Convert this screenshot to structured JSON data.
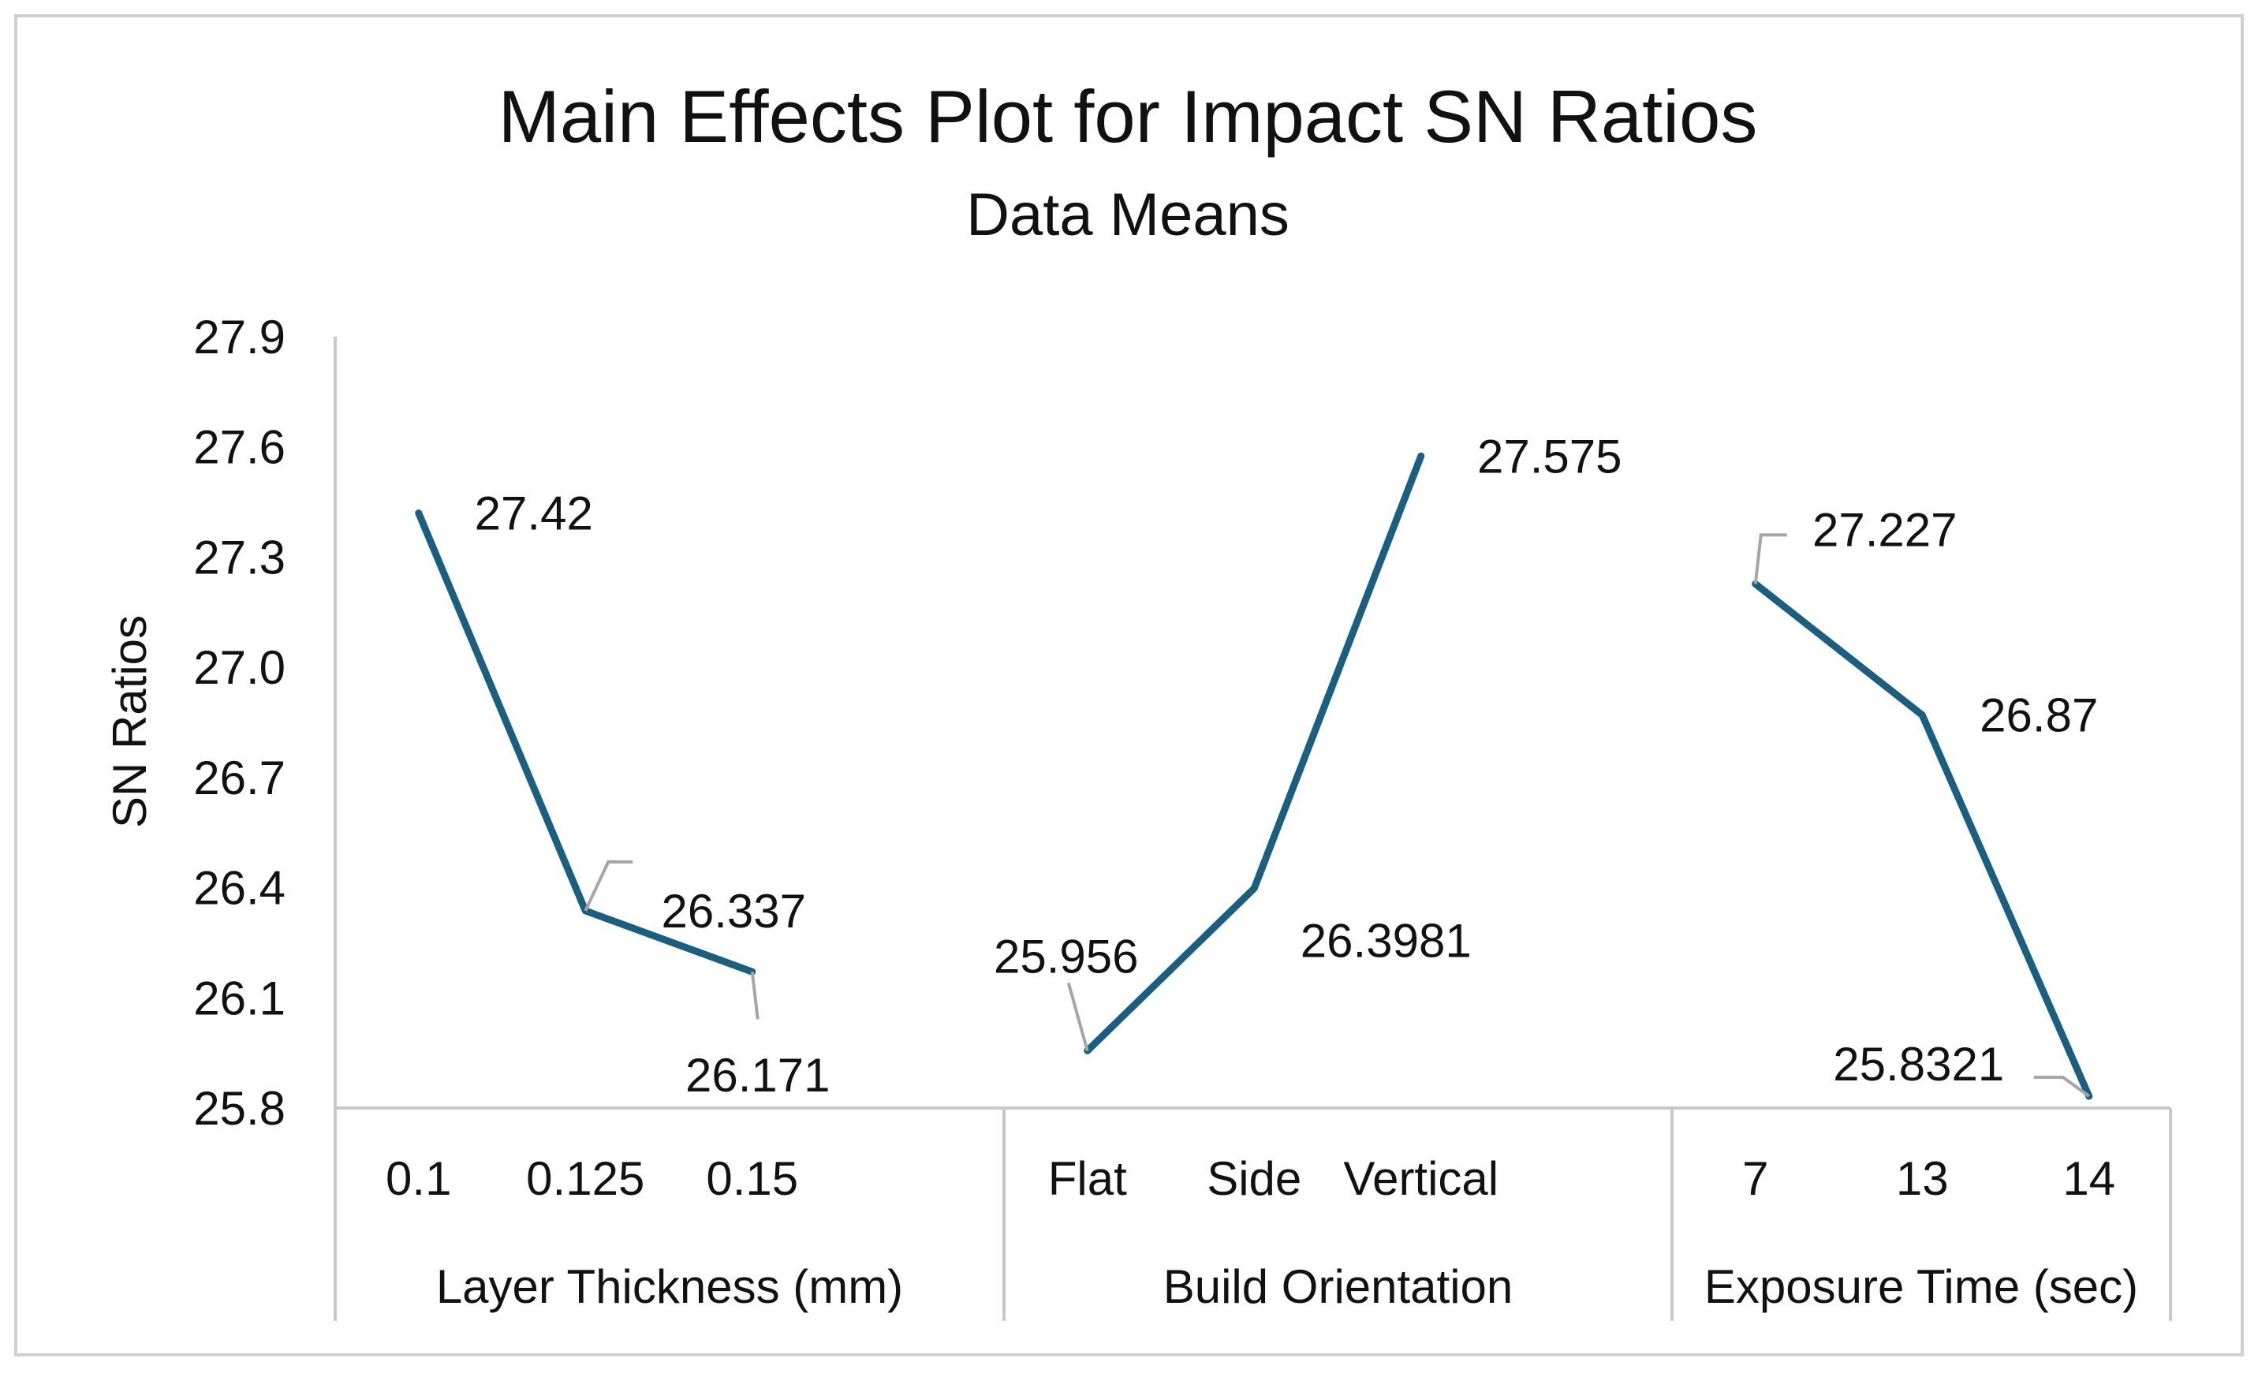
{
  "chart_data": {
    "type": "line",
    "title": "Main Effects Plot for Impact SN Ratios",
    "subtitle": "Data Means",
    "ylabel": "SN Ratios",
    "ylim": [
      25.8,
      27.9
    ],
    "yticks": [
      "27.9",
      "27.6",
      "27.3",
      "27.0",
      "26.7",
      "26.4",
      "26.1",
      "25.8"
    ],
    "grid": false,
    "line_color": "#1B5E7F",
    "series": [
      {
        "name": "Layer Thickness (mm)",
        "categories": [
          "0.1",
          "0.125",
          "0.15"
        ],
        "values": [
          27.42,
          26.337,
          26.171
        ],
        "labels": [
          "27.42",
          "26.337",
          "26.171"
        ]
      },
      {
        "name": "Build Orientation",
        "categories": [
          "Flat",
          "Side",
          "Vertical"
        ],
        "values": [
          25.956,
          26.3981,
          27.575
        ],
        "labels": [
          "25.956",
          "26.3981",
          "27.575"
        ]
      },
      {
        "name": "Exposure Time (sec)",
        "categories": [
          "7",
          "13",
          "14"
        ],
        "values": [
          27.227,
          26.87,
          25.8321
        ],
        "labels": [
          "27.227",
          "26.87",
          "25.8321"
        ]
      }
    ]
  }
}
